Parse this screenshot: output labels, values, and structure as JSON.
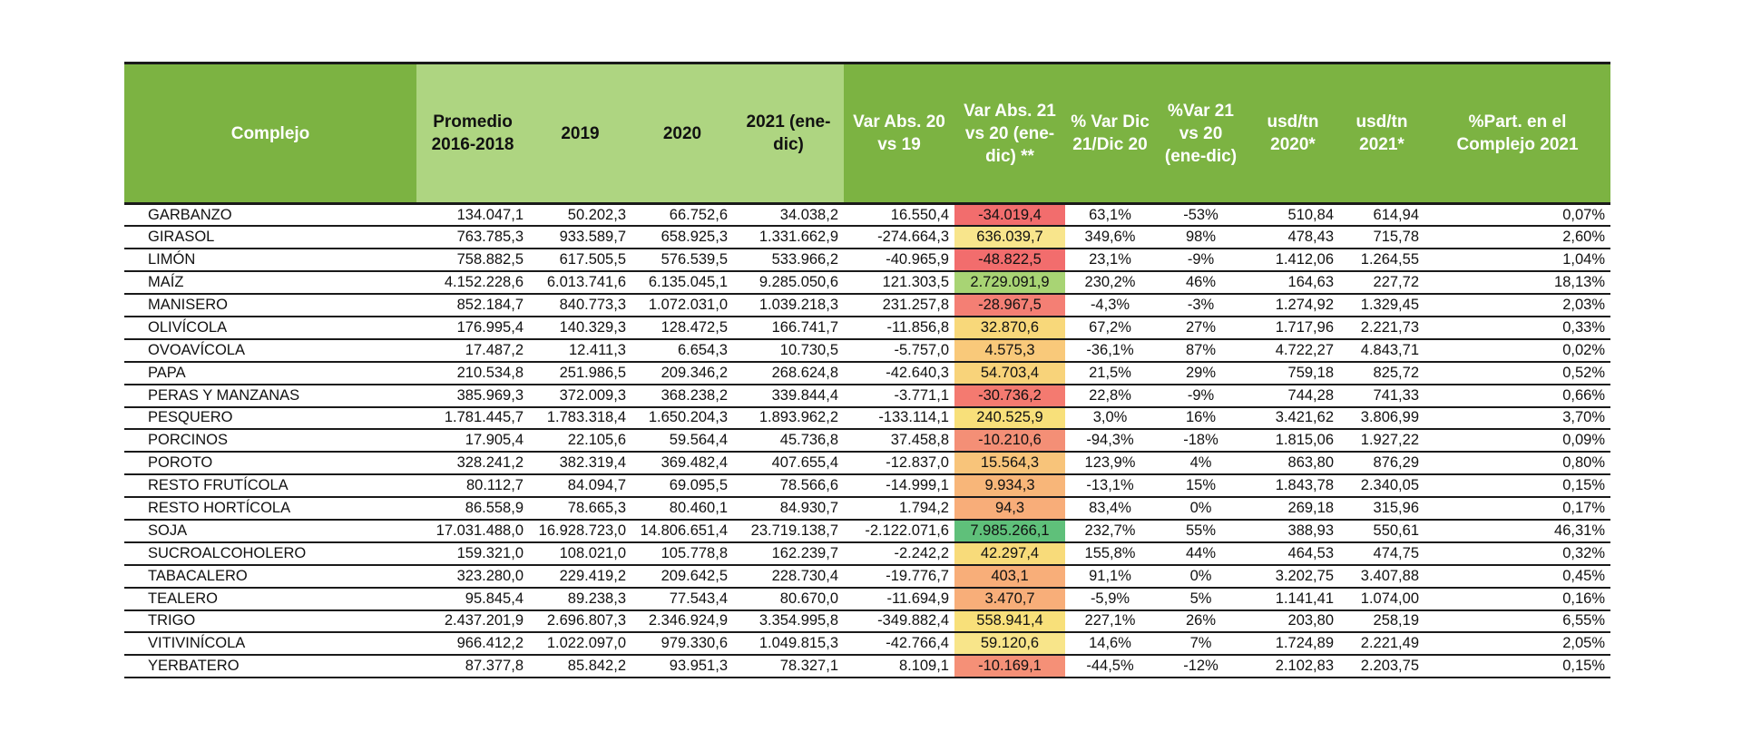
{
  "headers": [
    "Complejo",
    "Promedio 2016-2018",
    "2019",
    "2020",
    "2021 (ene-dic)",
    "Var Abs. 20 vs 19",
    "Var Abs. 21 vs 20 (ene-dic) **",
    "% Var Dic 21/Dic 20",
    "%Var 21 vs 20 (ene-dic)",
    "usd/tn 2020*",
    "usd/tn 2021*",
    "%Part. en el Complejo 2021"
  ],
  "rows": [
    [
      "GARBANZO",
      "134.047,1",
      "50.202,3",
      "66.752,6",
      "34.038,2",
      "16.550,4",
      "-34.019,4",
      "63,1%",
      "-53%",
      "510,84",
      "614,94",
      "0,07%"
    ],
    [
      "GIRASOL",
      "763.785,3",
      "933.589,7",
      "658.925,3",
      "1.331.662,9",
      "-274.664,3",
      "636.039,7",
      "349,6%",
      "98%",
      "478,43",
      "715,78",
      "2,60%"
    ],
    [
      "LIMÓN",
      "758.882,5",
      "617.505,5",
      "576.539,5",
      "533.966,2",
      "-40.965,9",
      "-48.822,5",
      "23,1%",
      "-9%",
      "1.412,06",
      "1.264,55",
      "1,04%"
    ],
    [
      "MAÍZ",
      "4.152.228,6",
      "6.013.741,6",
      "6.135.045,1",
      "9.285.050,6",
      "121.303,5",
      "2.729.091,9",
      "230,2%",
      "46%",
      "164,63",
      "227,72",
      "18,13%"
    ],
    [
      "MANISERO",
      "852.184,7",
      "840.773,3",
      "1.072.031,0",
      "1.039.218,3",
      "231.257,8",
      "-28.967,5",
      "-4,3%",
      "-3%",
      "1.274,92",
      "1.329,45",
      "2,03%"
    ],
    [
      "OLIVÍCOLA",
      "176.995,4",
      "140.329,3",
      "128.472,5",
      "166.741,7",
      "-11.856,8",
      "32.870,6",
      "67,2%",
      "27%",
      "1.717,96",
      "2.221,73",
      "0,33%"
    ],
    [
      "OVOAVÍCOLA",
      "17.487,2",
      "12.411,3",
      "6.654,3",
      "10.730,5",
      "-5.757,0",
      "4.575,3",
      "-36,1%",
      "87%",
      "4.722,27",
      "4.843,71",
      "0,02%"
    ],
    [
      "PAPA",
      "210.534,8",
      "251.986,5",
      "209.346,2",
      "268.624,8",
      "-42.640,3",
      "54.703,4",
      "21,5%",
      "29%",
      "759,18",
      "825,72",
      "0,52%"
    ],
    [
      "PERAS Y MANZANAS",
      "385.969,3",
      "372.009,3",
      "368.238,2",
      "339.844,4",
      "-3.771,1",
      "-30.736,2",
      "22,8%",
      "-9%",
      "744,28",
      "741,33",
      "0,66%"
    ],
    [
      "PESQUERO",
      "1.781.445,7",
      "1.783.318,4",
      "1.650.204,3",
      "1.893.962,2",
      "-133.114,1",
      "240.525,9",
      "3,0%",
      "16%",
      "3.421,62",
      "3.806,99",
      "3,70%"
    ],
    [
      "PORCINOS",
      "17.905,4",
      "22.105,6",
      "59.564,4",
      "45.736,8",
      "37.458,8",
      "-10.210,6",
      "-94,3%",
      "-18%",
      "1.815,06",
      "1.927,22",
      "0,09%"
    ],
    [
      "POROTO",
      "328.241,2",
      "382.319,4",
      "369.482,4",
      "407.655,4",
      "-12.837,0",
      "15.564,3",
      "123,9%",
      "4%",
      "863,80",
      "876,29",
      "0,80%"
    ],
    [
      "RESTO FRUTÍCOLA",
      "80.112,7",
      "84.094,7",
      "69.095,5",
      "78.566,6",
      "-14.999,1",
      "9.934,3",
      "-13,1%",
      "15%",
      "1.843,78",
      "2.340,05",
      "0,15%"
    ],
    [
      "RESTO HORTÍCOLA",
      "86.558,9",
      "78.665,3",
      "80.460,1",
      "84.930,7",
      "1.794,2",
      "94,3",
      "83,4%",
      "0%",
      "269,18",
      "315,96",
      "0,17%"
    ],
    [
      "SOJA",
      "17.031.488,0",
      "16.928.723,0",
      "14.806.651,4",
      "23.719.138,7",
      "-2.122.071,6",
      "7.985.266,1",
      "232,7%",
      "55%",
      "388,93",
      "550,61",
      "46,31%"
    ],
    [
      "SUCROALCOHOLERO",
      "159.321,0",
      "108.021,0",
      "105.778,8",
      "162.239,7",
      "-2.242,2",
      "42.297,4",
      "155,8%",
      "44%",
      "464,53",
      "474,75",
      "0,32%"
    ],
    [
      "TABACALERO",
      "323.280,0",
      "229.419,2",
      "209.642,5",
      "228.730,4",
      "-19.776,7",
      "403,1",
      "91,1%",
      "0%",
      "3.202,75",
      "3.407,88",
      "0,45%"
    ],
    [
      "TEALERO",
      "95.845,4",
      "89.238,3",
      "77.543,4",
      "80.670,0",
      "-11.694,9",
      "3.470,7",
      "-5,9%",
      "5%",
      "1.141,41",
      "1.074,00",
      "0,16%"
    ],
    [
      "TRIGO",
      "2.437.201,9",
      "2.696.807,3",
      "2.346.924,9",
      "3.354.995,8",
      "-349.882,4",
      "558.941,4",
      "227,1%",
      "26%",
      "203,80",
      "258,19",
      "6,55%"
    ],
    [
      "VITIVINÍCOLA",
      "966.412,2",
      "1.022.097,0",
      "979.330,6",
      "1.049.815,3",
      "-42.766,4",
      "59.120,6",
      "14,6%",
      "7%",
      "1.724,89",
      "2.221,49",
      "2,05%"
    ],
    [
      "YERBATERO",
      "87.377,8",
      "85.842,2",
      "93.951,3",
      "78.327,1",
      "8.109,1",
      "-10.169,1",
      "-44,5%",
      "-12%",
      "2.102,83",
      "2.203,75",
      "0,15%"
    ]
  ],
  "heat_colors": [
    "#f26d6d",
    "#f8e58c",
    "#f26d6d",
    "#a8d474",
    "#f47f74",
    "#f8d87a",
    "#f9c97a",
    "#f8d37a",
    "#f47a70",
    "#f8e07a",
    "#f48f76",
    "#f8c47a",
    "#f8b679",
    "#f8ad79",
    "#5fc07a",
    "#f8db7a",
    "#f8ae79",
    "#f8ae79",
    "#f8e07a",
    "#f8e58a",
    "#f59077"
  ]
}
